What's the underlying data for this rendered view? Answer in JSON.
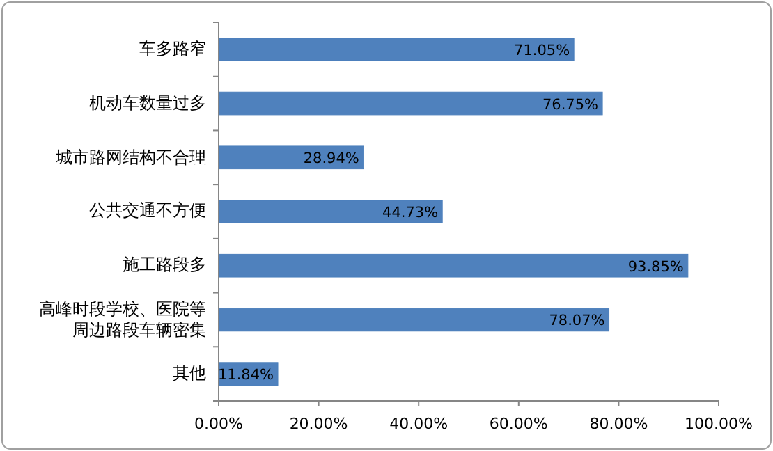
{
  "chart_data": {
    "type": "bar",
    "orientation": "horizontal",
    "categories": [
      "车多路窄",
      "机动车数量过多",
      "城市路网结构不合理",
      "公共交通不方便",
      "施工路段多",
      "高峰时段学校、医院等周边路段车辆密集",
      "其他"
    ],
    "values": [
      71.05,
      76.75,
      28.94,
      44.73,
      93.85,
      78.07,
      11.84
    ],
    "value_labels": [
      "71.05%",
      "76.75%",
      "28.94%",
      "44.73%",
      "93.85%",
      "78.07%",
      "11.84%"
    ],
    "color": "#4f81bd",
    "xlim": [
      0,
      100
    ],
    "xticks": [
      {
        "value": 0,
        "label": "0.00%"
      },
      {
        "value": 20,
        "label": "20.00%"
      },
      {
        "value": 40,
        "label": "40.00%"
      },
      {
        "value": 60,
        "label": "60.00%"
      },
      {
        "value": 80,
        "label": "80.00%"
      },
      {
        "value": 100,
        "label": "100.00%"
      }
    ],
    "grid": false
  }
}
